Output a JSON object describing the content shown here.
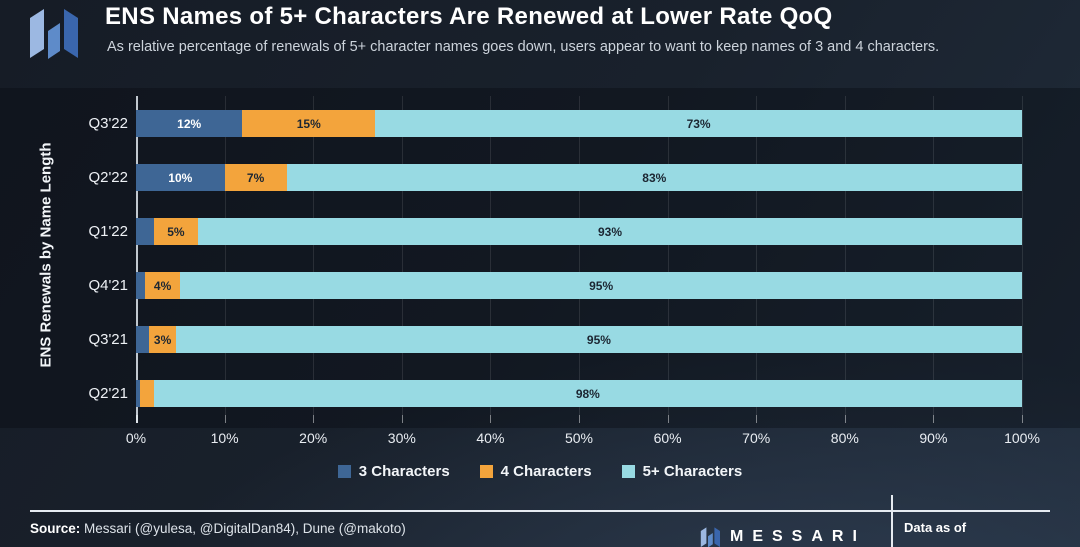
{
  "header": {
    "title": "ENS Names of 5+ Characters Are Renewed at Lower Rate QoQ",
    "subtitle": "As relative percentage of renewals of 5+ character names goes down, users appear to want to keep names of 3 and 4 characters."
  },
  "chart_data": {
    "type": "bar",
    "orientation": "horizontal",
    "stacked": true,
    "title": "ENS Names of 5+ Characters Are Renewed at Lower Rate QoQ",
    "ylabel": "ENS Renewals by Name Length",
    "xlabel": "",
    "xlim": [
      0,
      100
    ],
    "x_tick_labels": [
      "0%",
      "10%",
      "20%",
      "30%",
      "40%",
      "50%",
      "60%",
      "70%",
      "80%",
      "90%",
      "100%"
    ],
    "grid": "vertical",
    "legend_position": "bottom",
    "categories": [
      "Q3'22",
      "Q2'22",
      "Q1'22",
      "Q4'21",
      "Q3'21",
      "Q2'21"
    ],
    "series": [
      {
        "name": "3 Characters",
        "color": "#3e6695",
        "label_color": "#ffffff",
        "values": [
          12,
          10,
          2,
          1,
          1.5,
          0.5
        ],
        "labels": [
          "12%",
          "10%",
          "",
          "",
          "",
          ""
        ]
      },
      {
        "name": "4 Characters",
        "color": "#f3a43c",
        "label_color": "#1c2632",
        "values": [
          15,
          7,
          5,
          4,
          3,
          1.5
        ],
        "labels": [
          "15%",
          "7%",
          "5%",
          "4%",
          "3%",
          ""
        ]
      },
      {
        "name": "5+ Characters",
        "color": "#98dae3",
        "label_color": "#1c2632",
        "values": [
          73,
          83,
          93,
          95,
          95,
          98
        ],
        "labels": [
          "73%",
          "83%",
          "93%",
          "95%",
          "95%",
          "98%"
        ]
      }
    ]
  },
  "footer": {
    "source_label": "Source:",
    "source_text": "Messari (@yulesa, @DigitalDan84), Dune (@makoto)",
    "brand_name": "MESSARI",
    "data_as_of_label": "Data as of"
  },
  "colors": {
    "background_dark": "#161c26",
    "background_light": "#212d3c",
    "chart_band": "rgba(5,9,15,0.35)",
    "series_blue": "#3e6695",
    "series_orange": "#f3a43c",
    "series_cyan": "#98dae3",
    "logo_blue_light": "#9cb8e2",
    "logo_blue_mid": "#5e8bc9",
    "logo_blue_dark": "#3a66ad"
  }
}
